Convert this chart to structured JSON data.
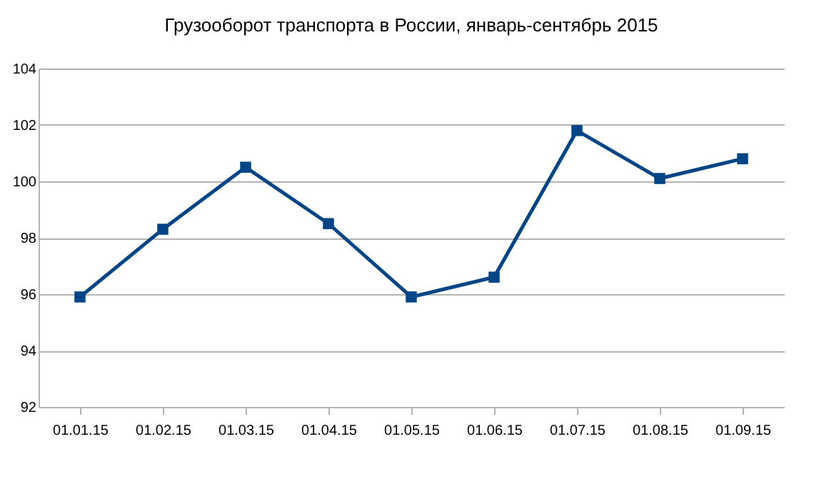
{
  "chart_data": {
    "type": "line",
    "title": "Грузооборот транспорта в России, январь-сентябрь 2015",
    "categories": [
      "01.01.15",
      "01.02.15",
      "01.03.15",
      "01.04.15",
      "01.05.15",
      "01.06.15",
      "01.07.15",
      "01.08.15",
      "01.09.15"
    ],
    "series": [
      {
        "color": "#004586",
        "values": [
          95.9,
          98.3,
          100.5,
          98.5,
          95.9,
          96.6,
          101.8,
          100.1,
          100.8
        ]
      }
    ],
    "ylim": [
      92,
      104
    ],
    "yticks": [
      92,
      94,
      96,
      98,
      100,
      102,
      104
    ],
    "grid": "y",
    "marker": "square",
    "line_style": "solid"
  }
}
